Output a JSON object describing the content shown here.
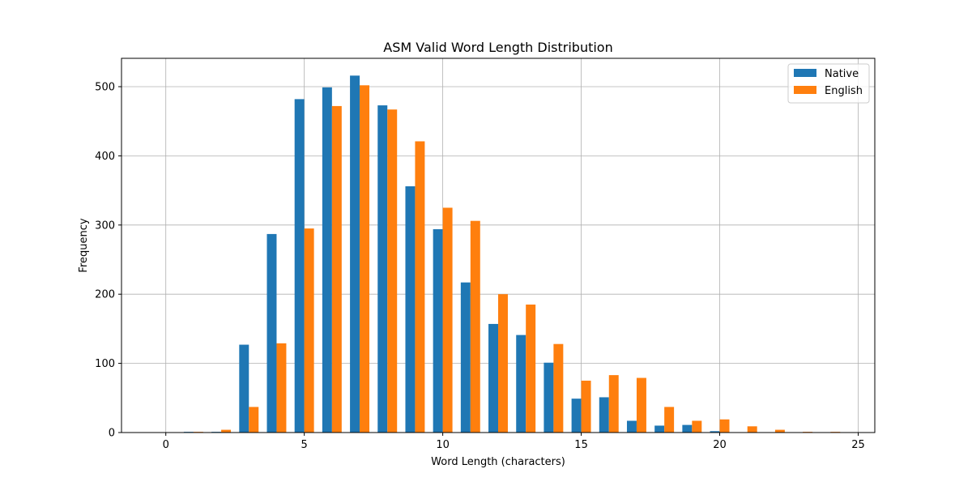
{
  "chart_data": {
    "type": "bar",
    "title": "ASM Valid Word Length Distribution",
    "xlabel": "Word Length (characters)",
    "ylabel": "Frequency",
    "x": [
      0,
      1,
      2,
      3,
      4,
      5,
      6,
      7,
      8,
      9,
      10,
      11,
      12,
      13,
      14,
      15,
      16,
      17,
      18,
      19,
      20,
      21,
      22,
      23,
      24
    ],
    "xlim": [
      -1.6,
      25.6
    ],
    "ylim": [
      0,
      541
    ],
    "xticks": [
      0,
      5,
      10,
      15,
      20,
      25
    ],
    "yticks": [
      0,
      100,
      200,
      300,
      400,
      500
    ],
    "grid": true,
    "legend_position": "top-right",
    "series": [
      {
        "name": "Native",
        "color": "#1f77b4",
        "values": [
          0,
          1,
          1,
          127,
          287,
          482,
          499,
          516,
          473,
          356,
          294,
          217,
          157,
          141,
          101,
          49,
          51,
          17,
          10,
          11,
          2,
          0,
          0,
          0,
          0
        ]
      },
      {
        "name": "English",
        "color": "#ff7f0e",
        "values": [
          0,
          1,
          4,
          37,
          129,
          295,
          472,
          502,
          467,
          421,
          325,
          306,
          200,
          185,
          128,
          75,
          83,
          79,
          37,
          17,
          19,
          9,
          4,
          1,
          1
        ]
      }
    ]
  }
}
